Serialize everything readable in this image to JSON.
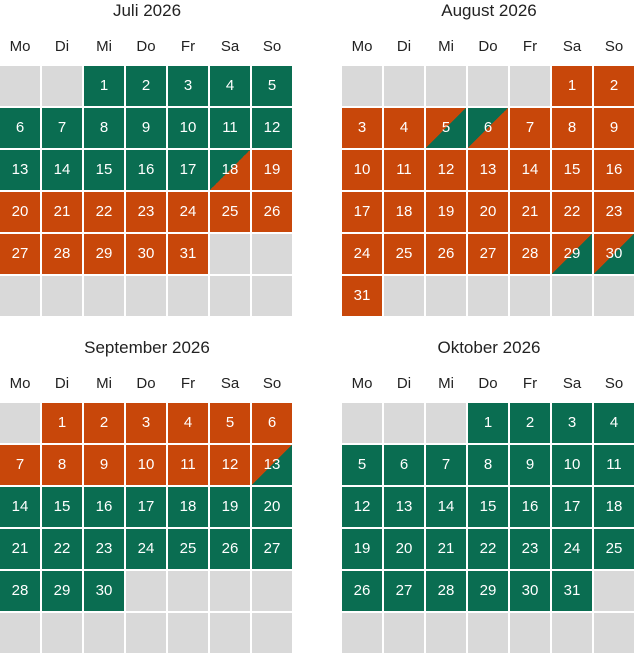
{
  "weekdays": [
    "Mo",
    "Di",
    "Mi",
    "Do",
    "Fr",
    "Sa",
    "So"
  ],
  "colors": {
    "free": "#0a6d51",
    "booked": "#c8470a",
    "empty": "#d9d9d9"
  },
  "months": [
    {
      "title": "Juli 2026",
      "first_weekday_index": 2,
      "days": 31,
      "status": {
        "1": "free",
        "2": "free",
        "3": "free",
        "4": "free",
        "5": "free",
        "6": "free",
        "7": "free",
        "8": "free",
        "9": "free",
        "10": "free",
        "11": "free",
        "12": "free",
        "13": "free",
        "14": "free",
        "15": "free",
        "16": "free",
        "17": "free",
        "18": "arrival",
        "19": "booked",
        "20": "booked",
        "21": "booked",
        "22": "booked",
        "23": "booked",
        "24": "booked",
        "25": "booked",
        "26": "booked",
        "27": "booked",
        "28": "booked",
        "29": "booked",
        "30": "booked",
        "31": "booked"
      }
    },
    {
      "title": "August 2026",
      "first_weekday_index": 5,
      "days": 31,
      "status": {
        "1": "booked",
        "2": "booked",
        "3": "booked",
        "4": "booked",
        "5": "departure",
        "6": "arrival",
        "7": "booked",
        "8": "booked",
        "9": "booked",
        "10": "booked",
        "11": "booked",
        "12": "booked",
        "13": "booked",
        "14": "booked",
        "15": "booked",
        "16": "booked",
        "17": "booked",
        "18": "booked",
        "19": "booked",
        "20": "booked",
        "21": "booked",
        "22": "booked",
        "23": "booked",
        "24": "booked",
        "25": "booked",
        "26": "booked",
        "27": "booked",
        "28": "booked",
        "29": "departure",
        "30": "departure",
        "31": "booked"
      }
    },
    {
      "title": "September 2026",
      "first_weekday_index": 1,
      "days": 30,
      "status": {
        "1": "booked",
        "2": "booked",
        "3": "booked",
        "4": "booked",
        "5": "booked",
        "6": "booked",
        "7": "booked",
        "8": "booked",
        "9": "booked",
        "10": "booked",
        "11": "booked",
        "12": "booked",
        "13": "departure",
        "14": "free",
        "15": "free",
        "16": "free",
        "17": "free",
        "18": "free",
        "19": "free",
        "20": "free",
        "21": "free",
        "22": "free",
        "23": "free",
        "24": "free",
        "25": "free",
        "26": "free",
        "27": "free",
        "28": "free",
        "29": "free",
        "30": "free"
      }
    },
    {
      "title": "Oktober 2026",
      "first_weekday_index": 3,
      "days": 31,
      "status": {
        "1": "free",
        "2": "free",
        "3": "free",
        "4": "free",
        "5": "free",
        "6": "free",
        "7": "free",
        "8": "free",
        "9": "free",
        "10": "free",
        "11": "free",
        "12": "free",
        "13": "free",
        "14": "free",
        "15": "free",
        "16": "free",
        "17": "free",
        "18": "free",
        "19": "free",
        "20": "free",
        "21": "free",
        "22": "free",
        "23": "free",
        "24": "free",
        "25": "free",
        "26": "free",
        "27": "free",
        "28": "free",
        "29": "free",
        "30": "free",
        "31": "free"
      }
    }
  ]
}
